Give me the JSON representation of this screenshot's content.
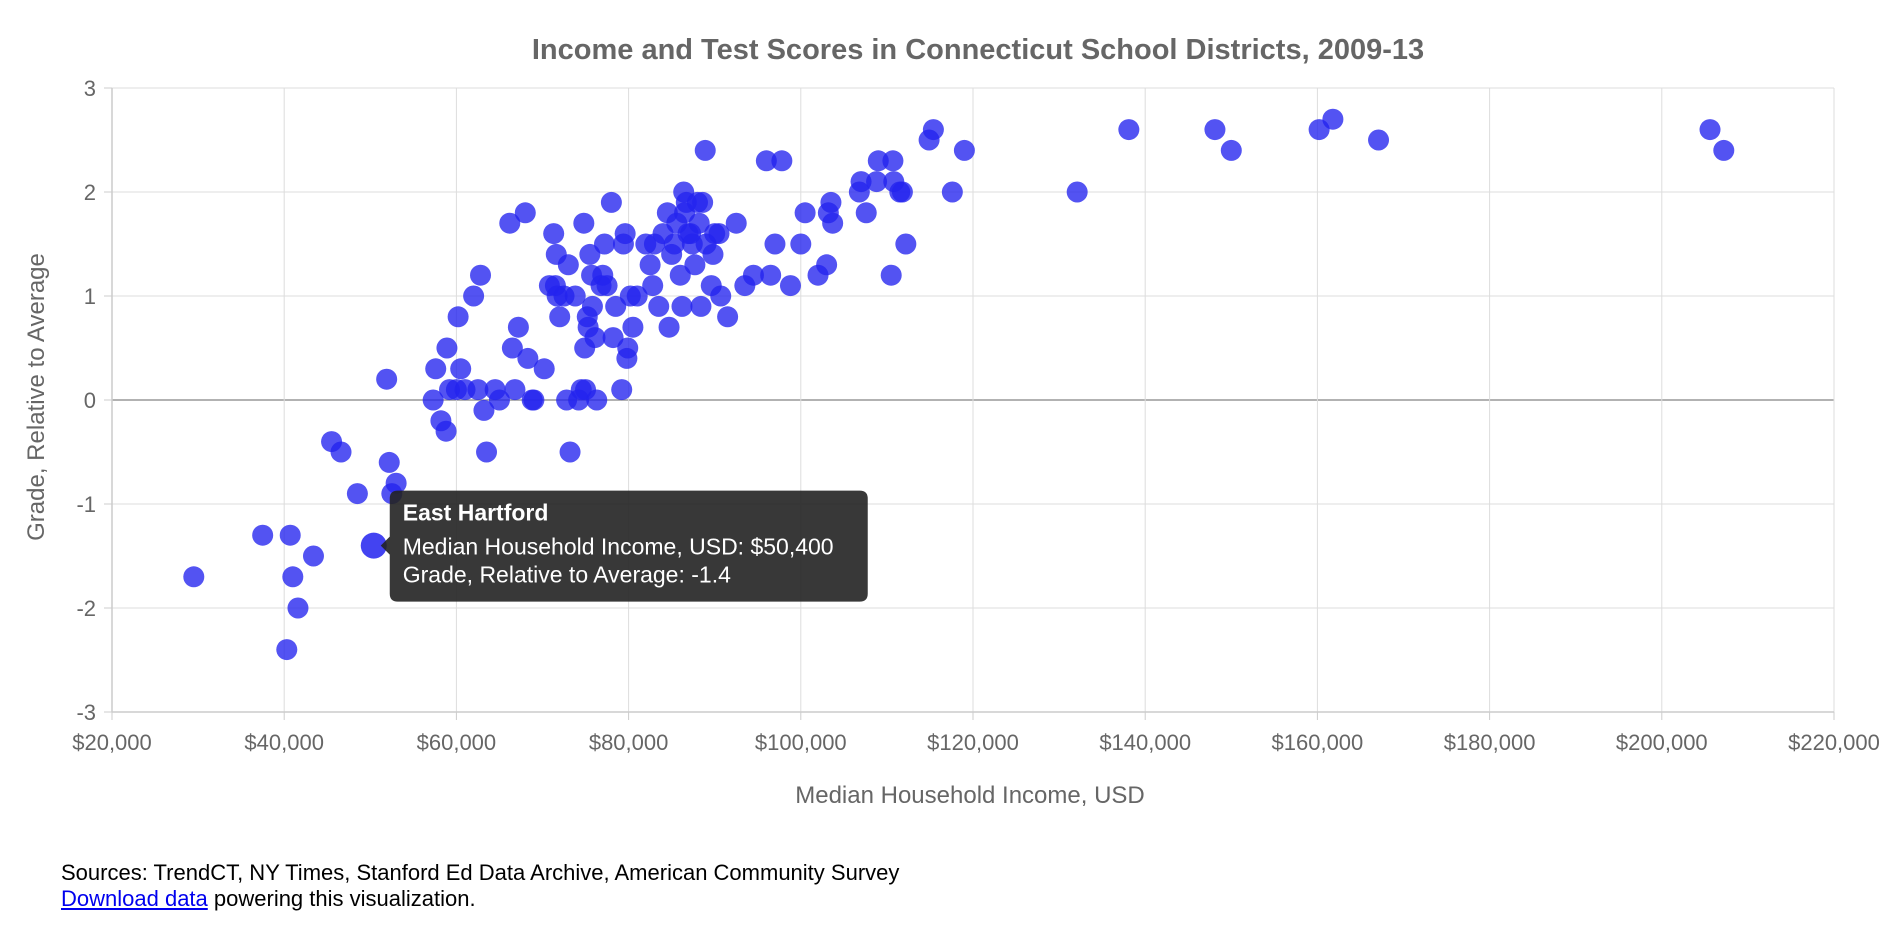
{
  "chart_data": {
    "type": "scatter",
    "title": "Income and Test Scores in Connecticut School Districts, 2009-13",
    "xlabel": "Median Household Income, USD",
    "ylabel": "Grade, Relative to Average",
    "xlim": [
      20000,
      220000
    ],
    "ylim": [
      -3,
      3
    ],
    "x_ticks": [
      "$20,000",
      "$40,000",
      "$60,000",
      "$80,000",
      "$100,000",
      "$120,000",
      "$140,000",
      "$160,000",
      "$180,000",
      "$200,000",
      "$220,000"
    ],
    "y_ticks": [
      "3",
      "2",
      "1",
      "0",
      "-1",
      "-2",
      "-3"
    ],
    "grid": true,
    "point_color": "#2222ee",
    "tooltip": {
      "title": "East Hartford",
      "line1": "Median Household Income, USD: $50,400",
      "line2": "Grade, Relative to Average: -1.4",
      "x": 50400,
      "y": -1.4
    },
    "points": [
      [
        29500,
        -1.7
      ],
      [
        37500,
        -1.3
      ],
      [
        40300,
        -2.4
      ],
      [
        40700,
        -1.3
      ],
      [
        41000,
        -1.7
      ],
      [
        41600,
        -2.0
      ],
      [
        43400,
        -1.5
      ],
      [
        45500,
        -0.4
      ],
      [
        46600,
        -0.5
      ],
      [
        48500,
        -0.9
      ],
      [
        51900,
        0.2
      ],
      [
        52200,
        -0.6
      ],
      [
        52500,
        -0.9
      ],
      [
        53000,
        -0.8
      ],
      [
        57300,
        0.0
      ],
      [
        57600,
        0.3
      ],
      [
        58200,
        -0.2
      ],
      [
        58800,
        -0.3
      ],
      [
        58900,
        0.5
      ],
      [
        59200,
        0.1
      ],
      [
        60000,
        0.1
      ],
      [
        60200,
        0.8
      ],
      [
        60500,
        0.3
      ],
      [
        61000,
        0.1
      ],
      [
        62000,
        1.0
      ],
      [
        62500,
        0.1
      ],
      [
        62800,
        1.2
      ],
      [
        63200,
        -0.1
      ],
      [
        63500,
        -0.5
      ],
      [
        64500,
        0.1
      ],
      [
        65000,
        0.0
      ],
      [
        66200,
        1.7
      ],
      [
        66500,
        0.5
      ],
      [
        66800,
        0.1
      ],
      [
        67200,
        0.7
      ],
      [
        68000,
        1.8
      ],
      [
        68300,
        0.4
      ],
      [
        68800,
        0.0
      ],
      [
        69000,
        0.0
      ],
      [
        70200,
        0.3
      ],
      [
        70800,
        1.1
      ],
      [
        71300,
        1.6
      ],
      [
        71500,
        1.1
      ],
      [
        71600,
        1.4
      ],
      [
        71700,
        1.0
      ],
      [
        72000,
        0.8
      ],
      [
        72500,
        1.0
      ],
      [
        72800,
        0.0
      ],
      [
        73000,
        1.3
      ],
      [
        73200,
        -0.5
      ],
      [
        73800,
        1.0
      ],
      [
        74200,
        0.0
      ],
      [
        74500,
        0.1
      ],
      [
        74800,
        1.7
      ],
      [
        74900,
        0.5
      ],
      [
        75000,
        0.1
      ],
      [
        75200,
        0.8
      ],
      [
        75300,
        0.7
      ],
      [
        75500,
        1.4
      ],
      [
        75700,
        1.2
      ],
      [
        75800,
        0.9
      ],
      [
        76100,
        0.6
      ],
      [
        76300,
        0.0
      ],
      [
        76800,
        1.1
      ],
      [
        77000,
        1.2
      ],
      [
        77200,
        1.5
      ],
      [
        77500,
        1.1
      ],
      [
        78000,
        1.9
      ],
      [
        78200,
        0.6
      ],
      [
        78500,
        0.9
      ],
      [
        79200,
        0.1
      ],
      [
        79400,
        1.5
      ],
      [
        79600,
        1.6
      ],
      [
        79800,
        0.4
      ],
      [
        79900,
        0.5
      ],
      [
        80200,
        1.0
      ],
      [
        80500,
        0.7
      ],
      [
        81000,
        1.0
      ],
      [
        82000,
        1.5
      ],
      [
        82500,
        1.3
      ],
      [
        82800,
        1.1
      ],
      [
        83000,
        1.5
      ],
      [
        83500,
        0.9
      ],
      [
        84000,
        1.6
      ],
      [
        84500,
        1.8
      ],
      [
        84700,
        0.7
      ],
      [
        85000,
        1.4
      ],
      [
        85300,
        1.5
      ],
      [
        85600,
        1.7
      ],
      [
        86000,
        1.2
      ],
      [
        86200,
        0.9
      ],
      [
        86400,
        2.0
      ],
      [
        86500,
        1.8
      ],
      [
        86700,
        1.9
      ],
      [
        86900,
        1.6
      ],
      [
        87200,
        1.6
      ],
      [
        87400,
        1.5
      ],
      [
        87700,
        1.3
      ],
      [
        88000,
        1.9
      ],
      [
        88200,
        1.7
      ],
      [
        88400,
        0.9
      ],
      [
        88600,
        1.9
      ],
      [
        88900,
        2.4
      ],
      [
        89000,
        1.5
      ],
      [
        89600,
        1.1
      ],
      [
        89800,
        1.4
      ],
      [
        90000,
        1.6
      ],
      [
        90500,
        1.6
      ],
      [
        90700,
        1.0
      ],
      [
        91500,
        0.8
      ],
      [
        92500,
        1.7
      ],
      [
        93500,
        1.1
      ],
      [
        94500,
        1.2
      ],
      [
        96000,
        2.3
      ],
      [
        96500,
        1.2
      ],
      [
        97000,
        1.5
      ],
      [
        97800,
        2.3
      ],
      [
        98800,
        1.1
      ],
      [
        100000,
        1.5
      ],
      [
        100500,
        1.8
      ],
      [
        102000,
        1.2
      ],
      [
        103000,
        1.3
      ],
      [
        103200,
        1.8
      ],
      [
        103500,
        1.9
      ],
      [
        103700,
        1.7
      ],
      [
        106800,
        2.0
      ],
      [
        107000,
        2.1
      ],
      [
        107600,
        1.8
      ],
      [
        108800,
        2.1
      ],
      [
        109000,
        2.3
      ],
      [
        110500,
        1.2
      ],
      [
        110700,
        2.3
      ],
      [
        110800,
        2.1
      ],
      [
        111500,
        2.0
      ],
      [
        111800,
        2.0
      ],
      [
        112200,
        1.5
      ],
      [
        114900,
        2.5
      ],
      [
        115400,
        2.6
      ],
      [
        117600,
        2.0
      ],
      [
        119000,
        2.4
      ],
      [
        132100,
        2.0
      ],
      [
        138100,
        2.6
      ],
      [
        148100,
        2.6
      ],
      [
        150000,
        2.4
      ],
      [
        160200,
        2.6
      ],
      [
        161800,
        2.7
      ],
      [
        167100,
        2.5
      ],
      [
        205600,
        2.6
      ],
      [
        207200,
        2.4
      ]
    ]
  },
  "footer": {
    "sources": "Sources: TrendCT, NY Times, Stanford Ed Data Archive, American Community Survey",
    "download_link": "Download data",
    "download_rest": " powering this visualization."
  }
}
